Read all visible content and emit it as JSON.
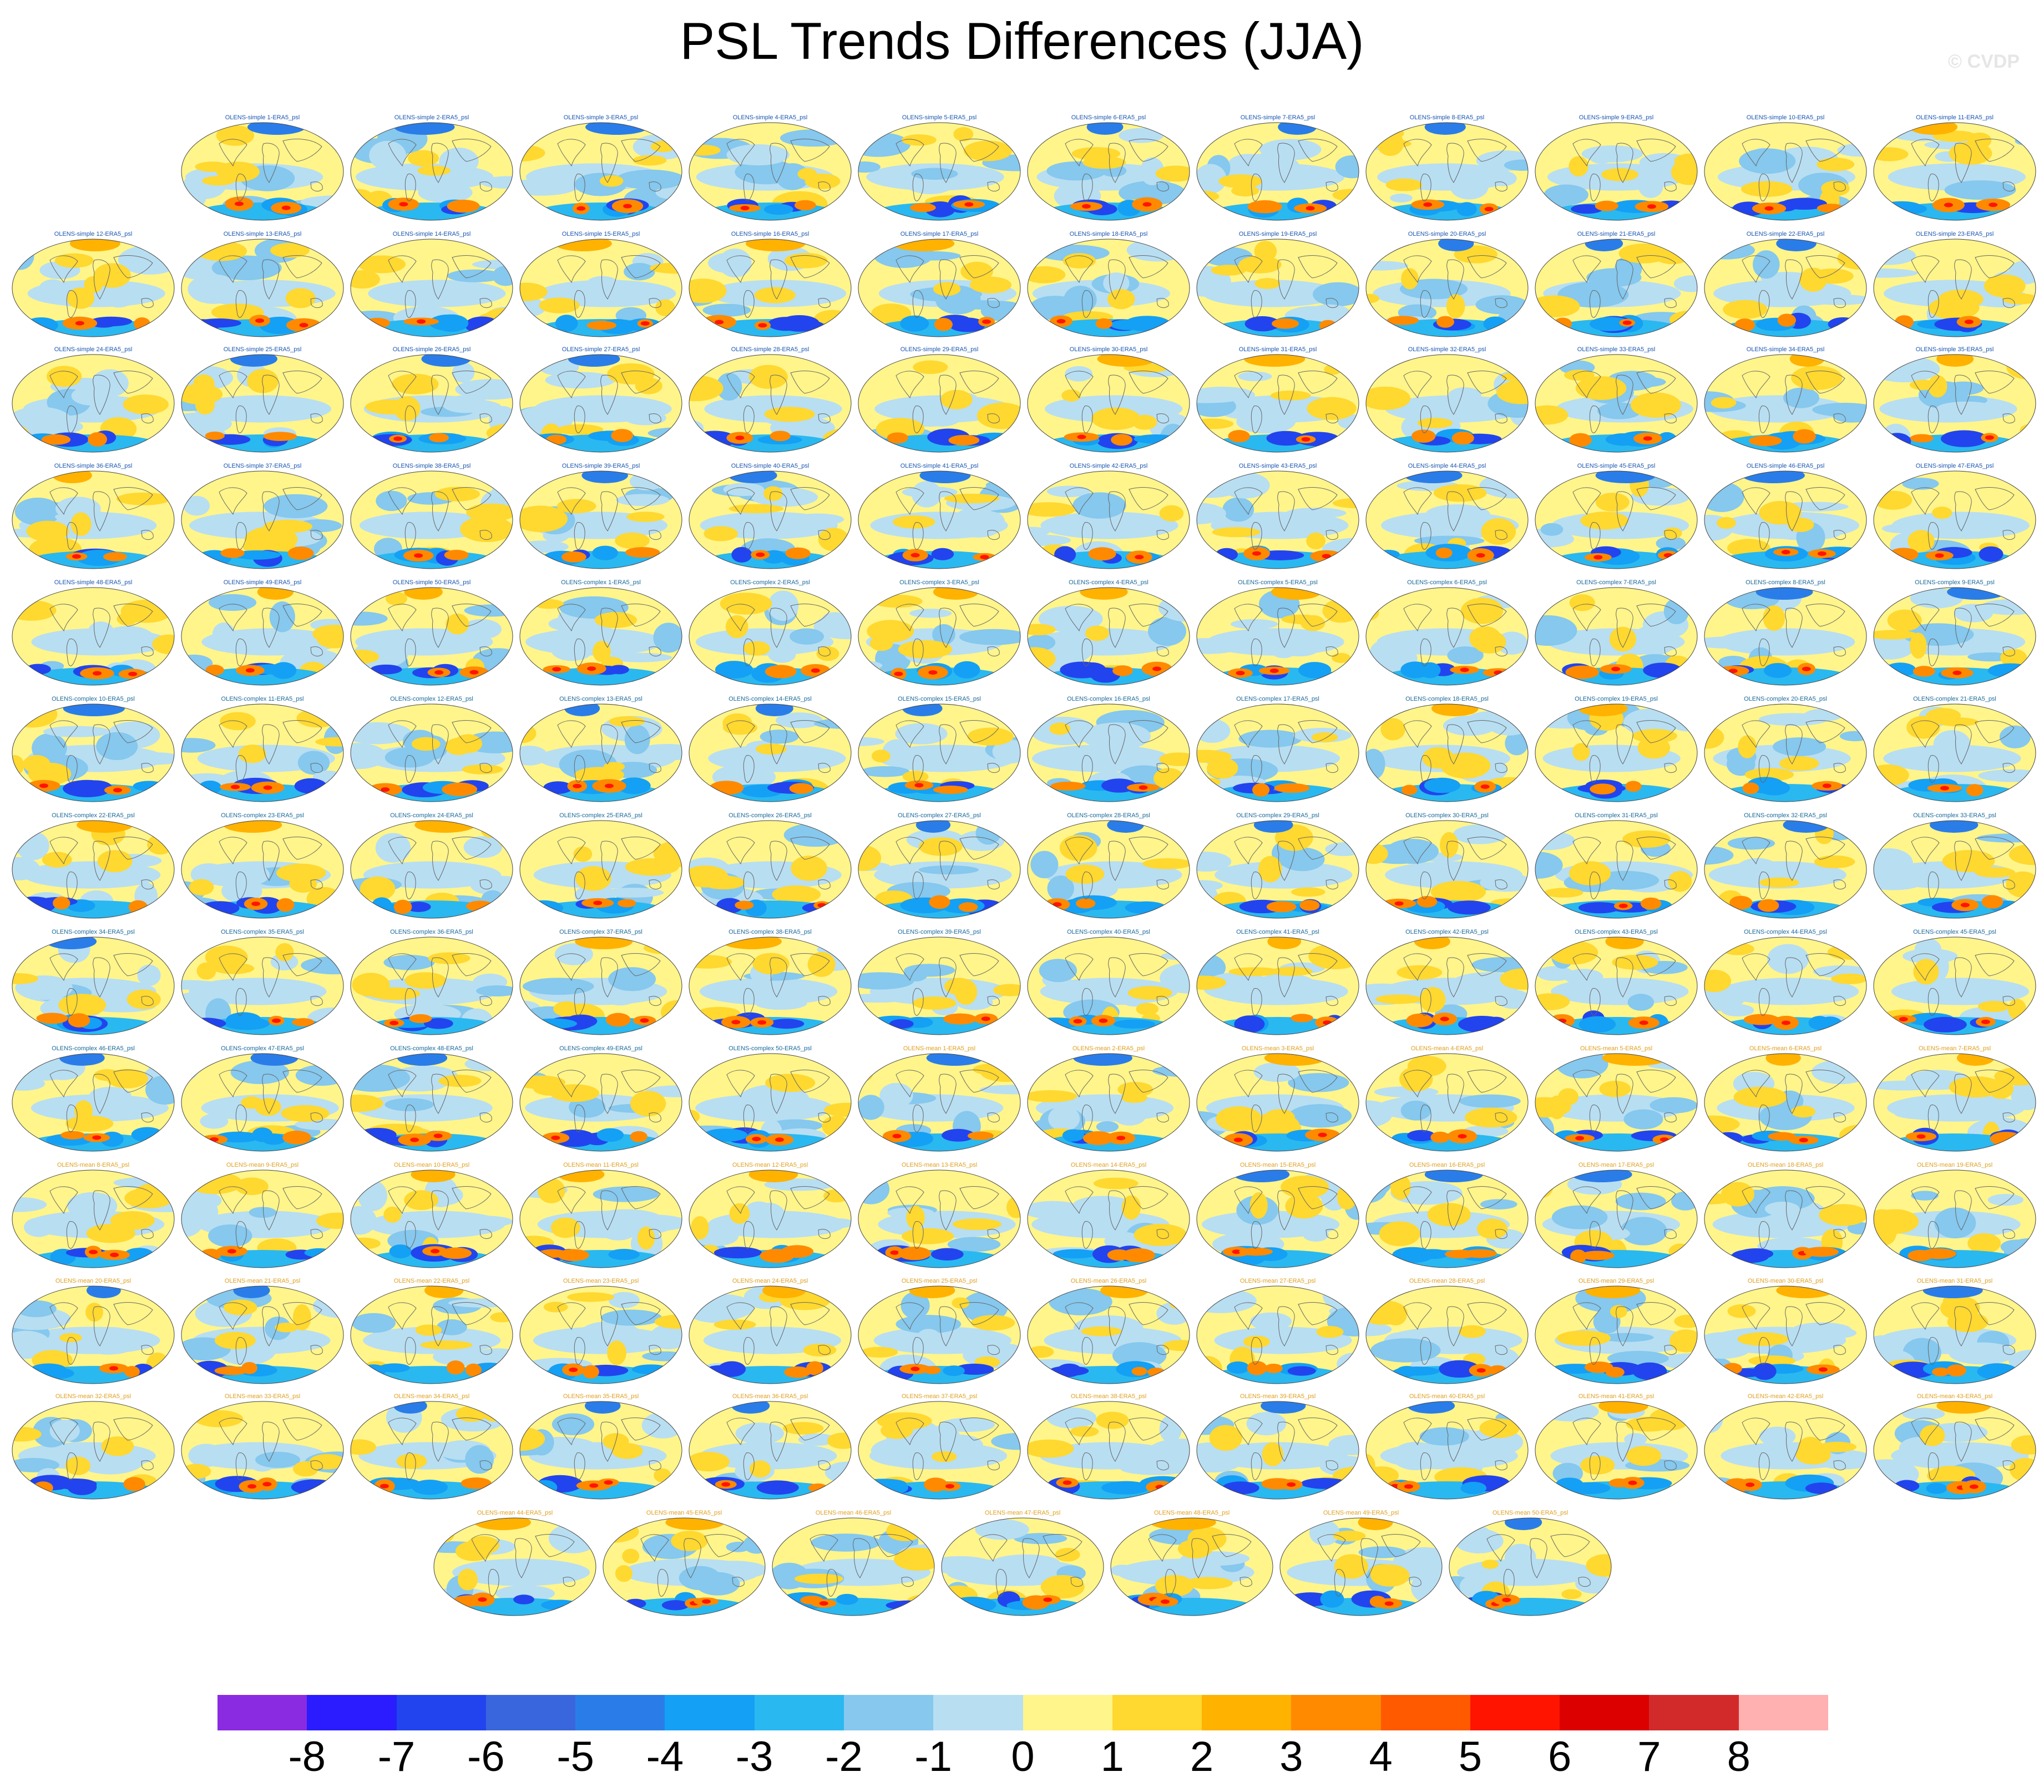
{
  "title": "PSL Trends Differences (JJA)",
  "copyright": "© CVDP",
  "chart_data": {
    "type": "heatmap",
    "title": "PSL Trends Differences (JJA)",
    "subtitle": "",
    "xlabel": "",
    "ylabel": "",
    "grid": false,
    "legend": "colorbar at bottom",
    "colorbar": {
      "tick_labels": [
        "-8",
        "-7",
        "-6",
        "-5",
        "-4",
        "-3",
        "-2",
        "-1",
        "0",
        "1",
        "2",
        "3",
        "4",
        "5",
        "6",
        "7",
        "8"
      ],
      "range": [
        -9,
        9
      ],
      "colors": [
        "#8a2be2",
        "#2a1cff",
        "#2244ee",
        "#3a66dd",
        "#2a7de8",
        "#14a0f5",
        "#2ab8f0",
        "#86c8ee",
        "#b8def2",
        "#fff58a",
        "#ffd830",
        "#ffb200",
        "#ff8a00",
        "#ff5a00",
        "#ff1400",
        "#dc0000",
        "#d22a2a",
        "#ffb0b0"
      ]
    },
    "panels": [
      {
        "label": "OLENS-simple 1-ERA5_psl",
        "group": "simple"
      },
      {
        "label": "OLENS-simple 2-ERA5_psl",
        "group": "simple"
      },
      {
        "label": "OLENS-simple 3-ERA5_psl",
        "group": "simple"
      },
      {
        "label": "OLENS-simple 4-ERA5_psl",
        "group": "simple"
      },
      {
        "label": "OLENS-simple 5-ERA5_psl",
        "group": "simple"
      },
      {
        "label": "OLENS-simple 6-ERA5_psl",
        "group": "simple"
      },
      {
        "label": "OLENS-simple 7-ERA5_psl",
        "group": "simple"
      },
      {
        "label": "OLENS-simple 8-ERA5_psl",
        "group": "simple"
      },
      {
        "label": "OLENS-simple 9-ERA5_psl",
        "group": "simple"
      },
      {
        "label": "OLENS-simple 10-ERA5_psl",
        "group": "simple"
      },
      {
        "label": "OLENS-simple 11-ERA5_psl",
        "group": "simple"
      },
      {
        "label": "OLENS-simple 12-ERA5_psl",
        "group": "simple"
      },
      {
        "label": "OLENS-simple 13-ERA5_psl",
        "group": "simple"
      },
      {
        "label": "OLENS-simple 14-ERA5_psl",
        "group": "simple"
      },
      {
        "label": "OLENS-simple 15-ERA5_psl",
        "group": "simple"
      },
      {
        "label": "OLENS-simple 16-ERA5_psl",
        "group": "simple"
      },
      {
        "label": "OLENS-simple 17-ERA5_psl",
        "group": "simple"
      },
      {
        "label": "OLENS-simple 18-ERA5_psl",
        "group": "simple"
      },
      {
        "label": "OLENS-simple 19-ERA5_psl",
        "group": "simple"
      },
      {
        "label": "OLENS-simple 20-ERA5_psl",
        "group": "simple"
      },
      {
        "label": "OLENS-simple 21-ERA5_psl",
        "group": "simple"
      },
      {
        "label": "OLENS-simple 22-ERA5_psl",
        "group": "simple"
      },
      {
        "label": "OLENS-simple 23-ERA5_psl",
        "group": "simple"
      },
      {
        "label": "OLENS-simple 24-ERA5_psl",
        "group": "simple"
      },
      {
        "label": "OLENS-simple 25-ERA5_psl",
        "group": "simple"
      },
      {
        "label": "OLENS-simple 26-ERA5_psl",
        "group": "simple"
      },
      {
        "label": "OLENS-simple 27-ERA5_psl",
        "group": "simple"
      },
      {
        "label": "OLENS-simple 28-ERA5_psl",
        "group": "simple"
      },
      {
        "label": "OLENS-simple 29-ERA5_psl",
        "group": "simple"
      },
      {
        "label": "OLENS-simple 30-ERA5_psl",
        "group": "simple"
      },
      {
        "label": "OLENS-simple 31-ERA5_psl",
        "group": "simple"
      },
      {
        "label": "OLENS-simple 32-ERA5_psl",
        "group": "simple"
      },
      {
        "label": "OLENS-simple 33-ERA5_psl",
        "group": "simple"
      },
      {
        "label": "OLENS-simple 34-ERA5_psl",
        "group": "simple"
      },
      {
        "label": "OLENS-simple 35-ERA5_psl",
        "group": "simple"
      },
      {
        "label": "OLENS-simple 36-ERA5_psl",
        "group": "simple"
      },
      {
        "label": "OLENS-simple 37-ERA5_psl",
        "group": "simple"
      },
      {
        "label": "OLENS-simple 38-ERA5_psl",
        "group": "simple"
      },
      {
        "label": "OLENS-simple 39-ERA5_psl",
        "group": "simple"
      },
      {
        "label": "OLENS-simple 40-ERA5_psl",
        "group": "simple"
      },
      {
        "label": "OLENS-simple 41-ERA5_psl",
        "group": "simple"
      },
      {
        "label": "OLENS-simple 42-ERA5_psl",
        "group": "simple"
      },
      {
        "label": "OLENS-simple 43-ERA5_psl",
        "group": "simple"
      },
      {
        "label": "OLENS-simple 44-ERA5_psl",
        "group": "simple"
      },
      {
        "label": "OLENS-simple 45-ERA5_psl",
        "group": "simple"
      },
      {
        "label": "OLENS-simple 46-ERA5_psl",
        "group": "simple"
      },
      {
        "label": "OLENS-simple 47-ERA5_psl",
        "group": "simple"
      },
      {
        "label": "OLENS-simple 48-ERA5_psl",
        "group": "simple"
      },
      {
        "label": "OLENS-simple 49-ERA5_psl",
        "group": "simple"
      },
      {
        "label": "OLENS-simple 50-ERA5_psl",
        "group": "simple"
      },
      {
        "label": "OLENS-complex 1-ERA5_psl",
        "group": "complex"
      },
      {
        "label": "OLENS-complex 2-ERA5_psl",
        "group": "complex"
      },
      {
        "label": "OLENS-complex 3-ERA5_psl",
        "group": "complex"
      },
      {
        "label": "OLENS-complex 4-ERA5_psl",
        "group": "complex"
      },
      {
        "label": "OLENS-complex 5-ERA5_psl",
        "group": "complex"
      },
      {
        "label": "OLENS-complex 6-ERA5_psl",
        "group": "complex"
      },
      {
        "label": "OLENS-complex 7-ERA5_psl",
        "group": "complex"
      },
      {
        "label": "OLENS-complex 8-ERA5_psl",
        "group": "complex"
      },
      {
        "label": "OLENS-complex 9-ERA5_psl",
        "group": "complex"
      },
      {
        "label": "OLENS-complex 10-ERA5_psl",
        "group": "complex"
      },
      {
        "label": "OLENS-complex 11-ERA5_psl",
        "group": "complex"
      },
      {
        "label": "OLENS-complex 12-ERA5_psl",
        "group": "complex"
      },
      {
        "label": "OLENS-complex 13-ERA5_psl",
        "group": "complex"
      },
      {
        "label": "OLENS-complex 14-ERA5_psl",
        "group": "complex"
      },
      {
        "label": "OLENS-complex 15-ERA5_psl",
        "group": "complex"
      },
      {
        "label": "OLENS-complex 16-ERA5_psl",
        "group": "complex"
      },
      {
        "label": "OLENS-complex 17-ERA5_psl",
        "group": "complex"
      },
      {
        "label": "OLENS-complex 18-ERA5_psl",
        "group": "complex"
      },
      {
        "label": "OLENS-complex 19-ERA5_psl",
        "group": "complex"
      },
      {
        "label": "OLENS-complex 20-ERA5_psl",
        "group": "complex"
      },
      {
        "label": "OLENS-complex 21-ERA5_psl",
        "group": "complex"
      },
      {
        "label": "OLENS-complex 22-ERA5_psl",
        "group": "complex"
      },
      {
        "label": "OLENS-complex 23-ERA5_psl",
        "group": "complex"
      },
      {
        "label": "OLENS-complex 24-ERA5_psl",
        "group": "complex"
      },
      {
        "label": "OLENS-complex 25-ERA5_psl",
        "group": "complex"
      },
      {
        "label": "OLENS-complex 26-ERA5_psl",
        "group": "complex"
      },
      {
        "label": "OLENS-complex 27-ERA5_psl",
        "group": "complex"
      },
      {
        "label": "OLENS-complex 28-ERA5_psl",
        "group": "complex"
      },
      {
        "label": "OLENS-complex 29-ERA5_psl",
        "group": "complex"
      },
      {
        "label": "OLENS-complex 30-ERA5_psl",
        "group": "complex"
      },
      {
        "label": "OLENS-complex 31-ERA5_psl",
        "group": "complex"
      },
      {
        "label": "OLENS-complex 32-ERA5_psl",
        "group": "complex"
      },
      {
        "label": "OLENS-complex 33-ERA5_psl",
        "group": "complex"
      },
      {
        "label": "OLENS-complex 34-ERA5_psl",
        "group": "complex"
      },
      {
        "label": "OLENS-complex 35-ERA5_psl",
        "group": "complex"
      },
      {
        "label": "OLENS-complex 36-ERA5_psl",
        "group": "complex"
      },
      {
        "label": "OLENS-complex 37-ERA5_psl",
        "group": "complex"
      },
      {
        "label": "OLENS-complex 38-ERA5_psl",
        "group": "complex"
      },
      {
        "label": "OLENS-complex 39-ERA5_psl",
        "group": "complex"
      },
      {
        "label": "OLENS-complex 40-ERA5_psl",
        "group": "complex"
      },
      {
        "label": "OLENS-complex 41-ERA5_psl",
        "group": "complex"
      },
      {
        "label": "OLENS-complex 42-ERA5_psl",
        "group": "complex"
      },
      {
        "label": "OLENS-complex 43-ERA5_psl",
        "group": "complex"
      },
      {
        "label": "OLENS-complex 44-ERA5_psl",
        "group": "complex"
      },
      {
        "label": "OLENS-complex 45-ERA5_psl",
        "group": "complex"
      },
      {
        "label": "OLENS-complex 46-ERA5_psl",
        "group": "complex"
      },
      {
        "label": "OLENS-complex 47-ERA5_psl",
        "group": "complex"
      },
      {
        "label": "OLENS-complex 48-ERA5_psl",
        "group": "complex"
      },
      {
        "label": "OLENS-complex 49-ERA5_psl",
        "group": "complex"
      },
      {
        "label": "OLENS-complex 50-ERA5_psl",
        "group": "complex"
      },
      {
        "label": "OLENS-mean 1-ERA5_psl",
        "group": "mean"
      },
      {
        "label": "OLENS-mean 2-ERA5_psl",
        "group": "mean"
      },
      {
        "label": "OLENS-mean 3-ERA5_psl",
        "group": "mean"
      },
      {
        "label": "OLENS-mean 4-ERA5_psl",
        "group": "mean"
      },
      {
        "label": "OLENS-mean 5-ERA5_psl",
        "group": "mean"
      },
      {
        "label": "OLENS-mean 6-ERA5_psl",
        "group": "mean"
      },
      {
        "label": "OLENS-mean 7-ERA5_psl",
        "group": "mean"
      },
      {
        "label": "OLENS-mean 8-ERA5_psl",
        "group": "mean"
      },
      {
        "label": "OLENS-mean 9-ERA5_psl",
        "group": "mean"
      },
      {
        "label": "OLENS-mean 10-ERA5_psl",
        "group": "mean"
      },
      {
        "label": "OLENS-mean 11-ERA5_psl",
        "group": "mean"
      },
      {
        "label": "OLENS-mean 12-ERA5_psl",
        "group": "mean"
      },
      {
        "label": "OLENS-mean 13-ERA5_psl",
        "group": "mean"
      },
      {
        "label": "OLENS-mean 14-ERA5_psl",
        "group": "mean"
      },
      {
        "label": "OLENS-mean 15-ERA5_psl",
        "group": "mean"
      },
      {
        "label": "OLENS-mean 16-ERA5_psl",
        "group": "mean"
      },
      {
        "label": "OLENS-mean 17-ERA5_psl",
        "group": "mean"
      },
      {
        "label": "OLENS-mean 18-ERA5_psl",
        "group": "mean"
      },
      {
        "label": "OLENS-mean 19-ERA5_psl",
        "group": "mean"
      },
      {
        "label": "OLENS-mean 20-ERA5_psl",
        "group": "mean"
      },
      {
        "label": "OLENS-mean 21-ERA5_psl",
        "group": "mean"
      },
      {
        "label": "OLENS-mean 22-ERA5_psl",
        "group": "mean"
      },
      {
        "label": "OLENS-mean 23-ERA5_psl",
        "group": "mean"
      },
      {
        "label": "OLENS-mean 24-ERA5_psl",
        "group": "mean"
      },
      {
        "label": "OLENS-mean 25-ERA5_psl",
        "group": "mean"
      },
      {
        "label": "OLENS-mean 26-ERA5_psl",
        "group": "mean"
      },
      {
        "label": "OLENS-mean 27-ERA5_psl",
        "group": "mean"
      },
      {
        "label": "OLENS-mean 28-ERA5_psl",
        "group": "mean"
      },
      {
        "label": "OLENS-mean 29-ERA5_psl",
        "group": "mean"
      },
      {
        "label": "OLENS-mean 30-ERA5_psl",
        "group": "mean"
      },
      {
        "label": "OLENS-mean 31-ERA5_psl",
        "group": "mean"
      },
      {
        "label": "OLENS-mean 32-ERA5_psl",
        "group": "mean"
      },
      {
        "label": "OLENS-mean 33-ERA5_psl",
        "group": "mean"
      },
      {
        "label": "OLENS-mean 34-ERA5_psl",
        "group": "mean"
      },
      {
        "label": "OLENS-mean 35-ERA5_psl",
        "group": "mean"
      },
      {
        "label": "OLENS-mean 36-ERA5_psl",
        "group": "mean"
      },
      {
        "label": "OLENS-mean 37-ERA5_psl",
        "group": "mean"
      },
      {
        "label": "OLENS-mean 38-ERA5_psl",
        "group": "mean"
      },
      {
        "label": "OLENS-mean 39-ERA5_psl",
        "group": "mean"
      },
      {
        "label": "OLENS-mean 40-ERA5_psl",
        "group": "mean"
      },
      {
        "label": "OLENS-mean 41-ERA5_psl",
        "group": "mean"
      },
      {
        "label": "OLENS-mean 42-ERA5_psl",
        "group": "mean"
      },
      {
        "label": "OLENS-mean 43-ERA5_psl",
        "group": "mean"
      },
      {
        "label": "OLENS-mean 44-ERA5_psl",
        "group": "mean"
      },
      {
        "label": "OLENS-mean 45-ERA5_psl",
        "group": "mean"
      },
      {
        "label": "OLENS-mean 46-ERA5_psl",
        "group": "mean"
      },
      {
        "label": "OLENS-mean 47-ERA5_psl",
        "group": "mean"
      },
      {
        "label": "OLENS-mean 48-ERA5_psl",
        "group": "mean"
      },
      {
        "label": "OLENS-mean 49-ERA5_psl",
        "group": "mean"
      },
      {
        "label": "OLENS-mean 50-ERA5_psl",
        "group": "mean"
      }
    ]
  }
}
